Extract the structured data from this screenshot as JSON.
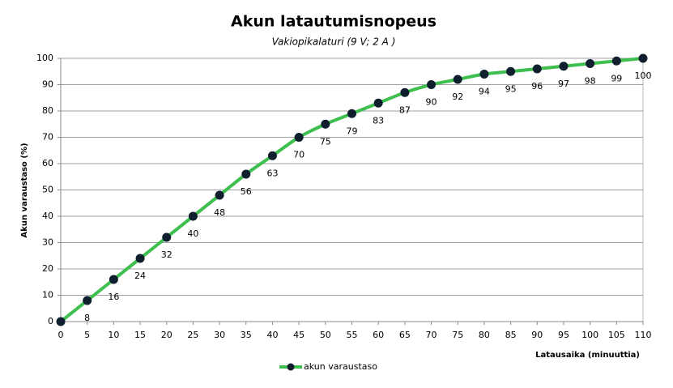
{
  "chart_data": {
    "type": "line",
    "title": "Akun latautumisnopeus",
    "subtitle": "Vakiopikalaturi  (9 V; 2 A )",
    "x_label": "Latausaika  (minuuttia)",
    "y_label": "Akun varaustaso  (%)",
    "x": [
      0,
      5,
      10,
      15,
      20,
      25,
      30,
      35,
      40,
      45,
      50,
      55,
      60,
      65,
      70,
      75,
      80,
      85,
      90,
      95,
      100,
      105,
      110
    ],
    "series": [
      {
        "name": "akun varaustaso",
        "color": "#3fbf4f",
        "marker_color": "#0f1f2e",
        "values": [
          0,
          8,
          16,
          24,
          32,
          40,
          48,
          56,
          63,
          70,
          75,
          79,
          83,
          87,
          90,
          92,
          94,
          95,
          96,
          97,
          98,
          99,
          100
        ]
      }
    ],
    "xlim": [
      0,
      110
    ],
    "xticks": [
      0,
      5,
      10,
      15,
      20,
      25,
      30,
      35,
      40,
      45,
      50,
      55,
      60,
      65,
      70,
      75,
      80,
      85,
      90,
      95,
      100,
      105,
      110
    ],
    "ylim": [
      0,
      100
    ],
    "yticks": [
      0,
      10,
      20,
      30,
      40,
      50,
      60,
      70,
      80,
      90,
      100
    ],
    "grid": true
  }
}
